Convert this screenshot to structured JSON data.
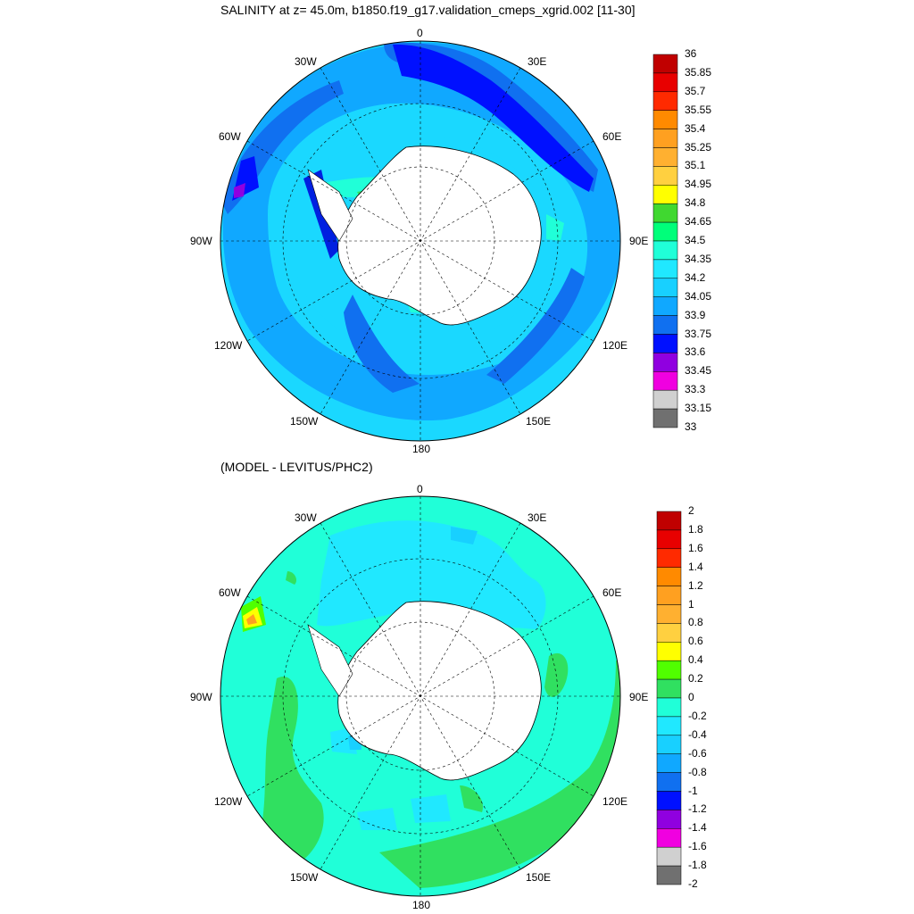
{
  "top_panel": {
    "title": "SALINITY at z=  45.0m, b1850.f19_g17.validation_cmeps_xgrid.002 [11-30]",
    "lon_labels": [
      "0",
      "30E",
      "60E",
      "90E",
      "120E",
      "150E",
      "180",
      "150W",
      "120W",
      "90W",
      "60W",
      "30W"
    ],
    "colorbar": {
      "labels": [
        "36",
        "35.85",
        "35.7",
        "35.55",
        "35.4",
        "35.25",
        "35.1",
        "34.95",
        "34.8",
        "34.65",
        "34.5",
        "34.35",
        "34.2",
        "34.05",
        "33.9",
        "33.75",
        "33.6",
        "33.45",
        "33.3",
        "33.15",
        "33"
      ],
      "colors": [
        "#c00000",
        "#e80000",
        "#ff2a00",
        "#ff8a00",
        "#ffa020",
        "#ffb030",
        "#ffd040",
        "#ffff00",
        "#40d830",
        "#00ff7a",
        "#20ffd8",
        "#20e8ff",
        "#18d0ff",
        "#10a8ff",
        "#1070f0",
        "#0010ff",
        "#9000e0",
        "#f000e0",
        "#d0d0d0",
        "#707070"
      ]
    }
  },
  "bottom_panel": {
    "title": "(MODEL - LEVITUS/PHC2)",
    "lon_labels": [
      "0",
      "30E",
      "60E",
      "90E",
      "120E",
      "150E",
      "180",
      "150W",
      "120W",
      "90W",
      "60W",
      "30W"
    ],
    "colorbar": {
      "labels": [
        "2",
        "1.8",
        "1.6",
        "1.4",
        "1.2",
        "1",
        "0.8",
        "0.6",
        "0.4",
        "0.2",
        "0",
        "-0.2",
        "-0.4",
        "-0.6",
        "-0.8",
        "-1",
        "-1.2",
        "-1.4",
        "-1.6",
        "-1.8",
        "-2"
      ],
      "colors": [
        "#c00000",
        "#e80000",
        "#ff2a00",
        "#ff8a00",
        "#ffa020",
        "#ffb030",
        "#ffd040",
        "#ffff00",
        "#50ff00",
        "#30e060",
        "#20ffd8",
        "#20e8ff",
        "#18d0ff",
        "#10a8ff",
        "#1070f0",
        "#0010ff",
        "#9000e0",
        "#f000e0",
        "#d0d0d0",
        "#707070"
      ]
    }
  },
  "colors": {
    "land": "#ffffff",
    "ocean_light": "#1ad8ff",
    "ocean_mid": "#10a8ff",
    "ocean_dark": "#1060f0",
    "ocean_deep": "#0020e0",
    "teal": "#20ffd8",
    "green": "#30e060"
  }
}
